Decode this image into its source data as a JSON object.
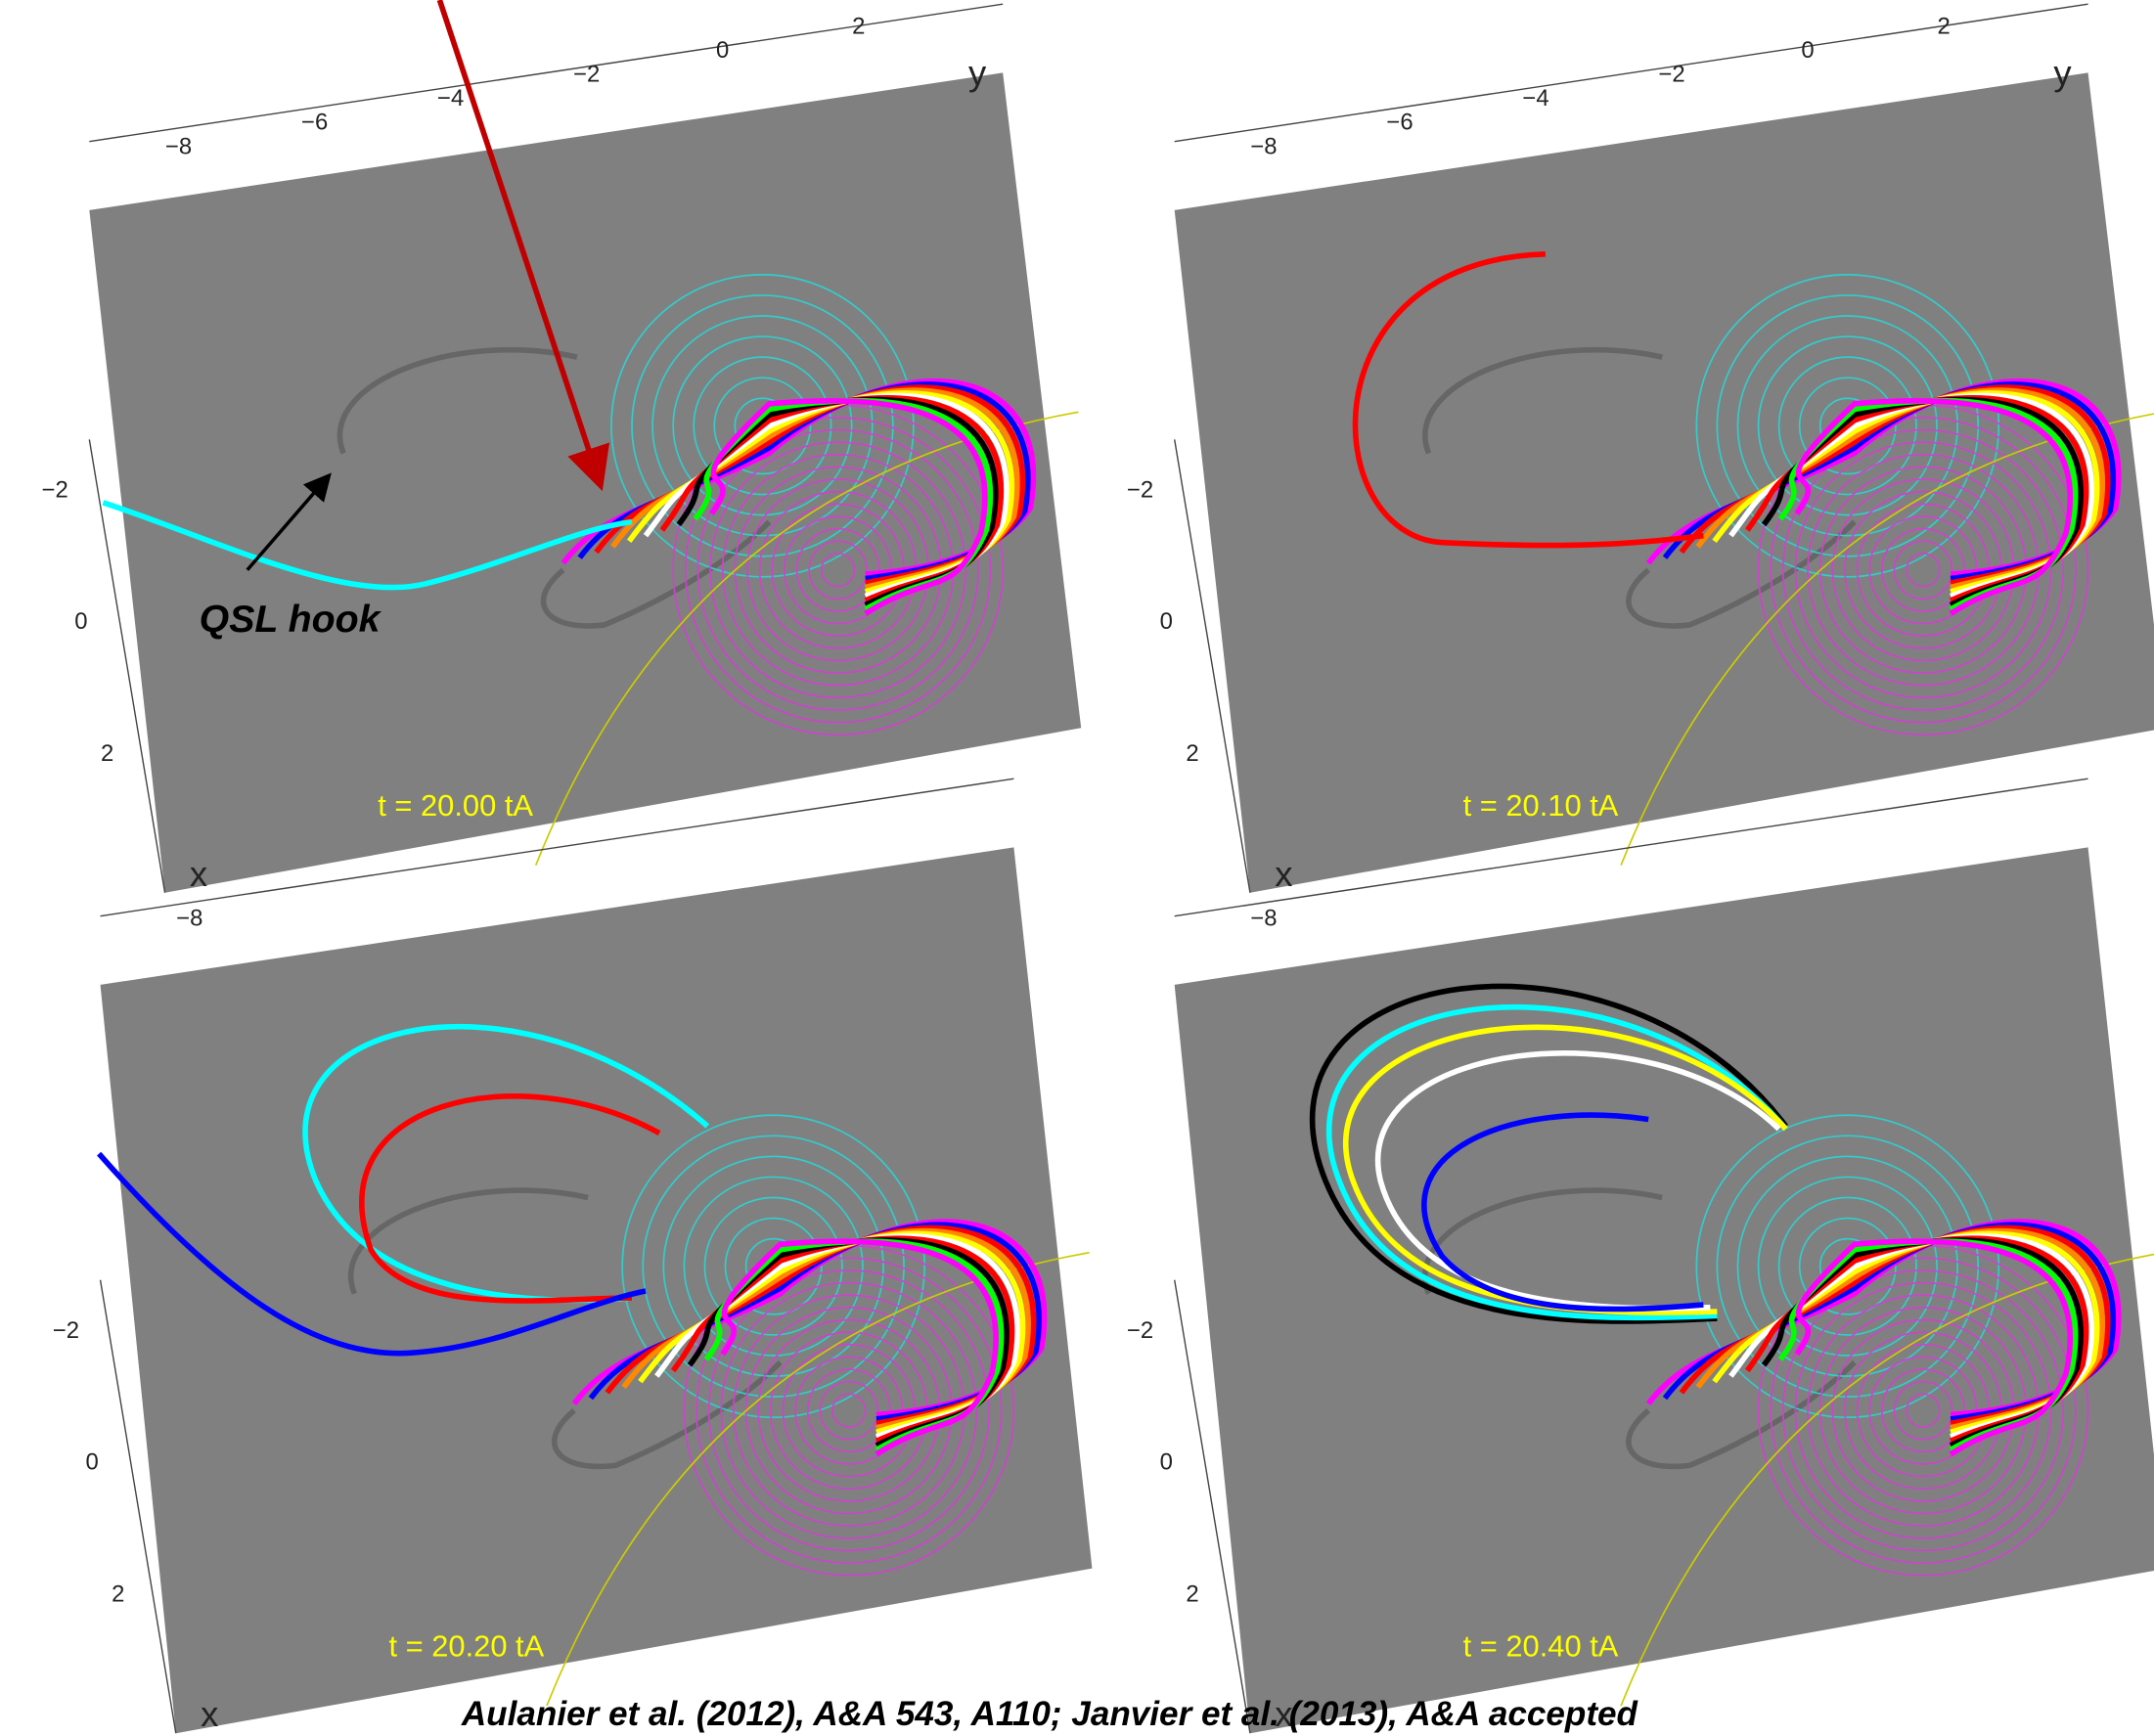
{
  "panels": [
    {
      "time": "t = 20.00 tA",
      "y_ticks": [
        "−8",
        "−6",
        "−4",
        "−2",
        "0",
        "2"
      ],
      "y_axis": "y",
      "x_ticks": [
        "−2",
        "0",
        "2"
      ],
      "x_axis": "x"
    },
    {
      "time": "t = 20.10 tA",
      "y_ticks": [
        "−8",
        "−6",
        "−4",
        "−2",
        "0",
        "2"
      ],
      "y_axis": "y",
      "x_ticks": [
        "−2",
        "0",
        "2"
      ],
      "x_axis": "x"
    },
    {
      "time": "t = 20.20 tA",
      "y_ticks": [
        "−8"
      ],
      "x_ticks": [
        "−2",
        "0",
        "2"
      ],
      "x_axis": "x"
    },
    {
      "time": "t = 20.40 tA",
      "y_ticks": [
        "−8"
      ],
      "x_ticks": [
        "−2",
        "0",
        "2"
      ],
      "x_axis": "x"
    }
  ],
  "annotation": "QSL hook",
  "citation": "Aulanier et al. (2012), A&A 543, A110;   Janvier et al. (2013), A&A accepted"
}
